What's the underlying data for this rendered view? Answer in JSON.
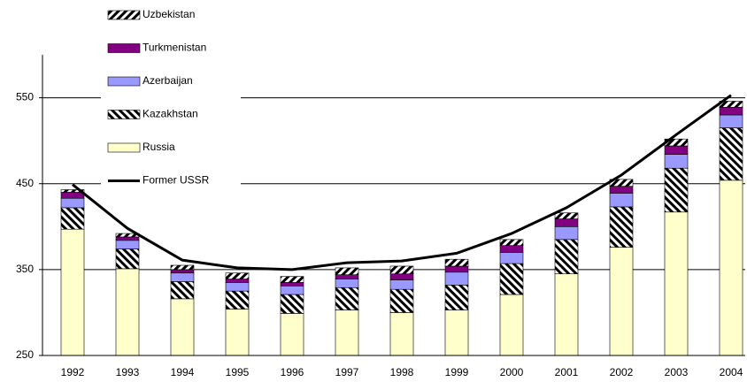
{
  "chart_data": {
    "type": "bar",
    "categories": [
      "1992",
      "1993",
      "1994",
      "1995",
      "1996",
      "1997",
      "1998",
      "1999",
      "2000",
      "2001",
      "2002",
      "2003",
      "2004"
    ],
    "series": [
      {
        "name": "Russia",
        "color": "#ffffcc",
        "values": [
          397,
          351,
          316,
          304,
          299,
          303,
          300,
          303,
          321,
          345,
          376,
          417,
          454
        ]
      },
      {
        "name": "Kazakhstan",
        "color": "#000000",
        "hatch": "back-diagonal",
        "values": [
          25,
          23,
          20,
          21,
          22,
          26,
          27,
          29,
          36,
          40,
          47,
          51,
          61
        ]
      },
      {
        "name": "Azerbaijan",
        "color": "#9999ff",
        "values": [
          11,
          10,
          10,
          10,
          10,
          10,
          11,
          15,
          13,
          15,
          16,
          16,
          15
        ]
      },
      {
        "name": "Turkmenistan",
        "color": "#800080",
        "values": [
          7,
          4,
          4,
          4,
          4,
          5,
          7,
          7,
          8,
          9,
          8,
          10,
          9
        ]
      },
      {
        "name": "Uzbekistan",
        "color": "#000000",
        "hatch": "diagonal",
        "values": [
          3,
          4,
          5,
          7,
          7,
          8,
          9,
          8,
          7,
          7,
          8,
          8,
          7
        ]
      },
      {
        "name": "Former USSR",
        "type": "line",
        "color": "#000000",
        "values": [
          449,
          398,
          361,
          352,
          350,
          358,
          360,
          369,
          392,
          422,
          460,
          507,
          553
        ]
      }
    ],
    "ylim": [
      250,
      600
    ],
    "yticks": [
      250,
      350,
      450,
      550
    ],
    "grid": true
  }
}
